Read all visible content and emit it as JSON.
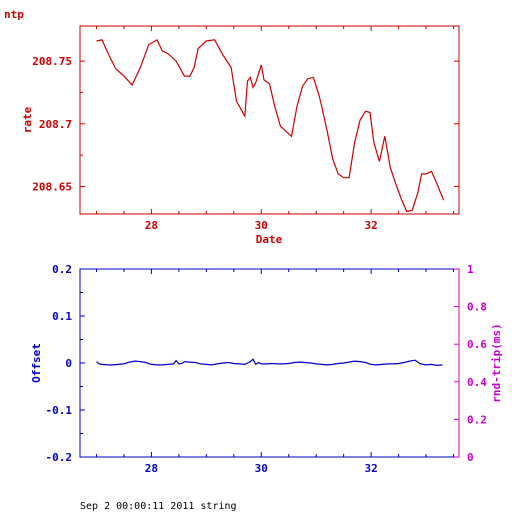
{
  "chart_data": [
    {
      "type": "line",
      "title": "ntp",
      "xlabel": "Date",
      "ylabel": "rate",
      "xlim": [
        26.7,
        33.6
      ],
      "ylim": [
        208.628,
        208.778
      ],
      "x_ticks": [
        28,
        30,
        32
      ],
      "y_ticks": [
        208.65,
        208.7,
        208.75
      ],
      "x_tick_labels": [
        "28",
        "30",
        "32"
      ],
      "y_tick_labels": [
        "208.65",
        "208.7",
        "208.75"
      ],
      "color": "#cc0000",
      "series": [
        {
          "x": [
            27.0,
            27.1,
            27.2,
            27.35,
            27.5,
            27.65,
            27.8,
            27.95,
            28.1,
            28.2,
            28.3,
            28.45,
            28.6,
            28.7,
            28.78,
            28.85,
            29.0,
            29.15,
            29.3,
            29.45,
            29.55,
            29.6,
            29.7,
            29.75,
            29.8,
            29.85,
            29.9,
            30.0,
            30.05,
            30.15,
            30.25,
            30.35,
            30.45,
            30.55,
            30.65,
            30.75,
            30.85,
            30.95,
            31.05,
            31.1,
            31.2,
            31.3,
            31.4,
            31.5,
            31.6,
            31.7,
            31.8,
            31.9,
            31.98,
            32.05,
            32.15,
            32.25,
            32.35,
            32.45,
            32.55,
            32.65,
            32.75,
            32.85,
            32.92,
            33.0,
            33.1,
            33.2,
            33.32
          ],
          "y": [
            208.766,
            208.767,
            208.757,
            208.744,
            208.738,
            208.731,
            208.745,
            208.763,
            208.767,
            208.758,
            208.756,
            208.75,
            208.738,
            208.738,
            208.745,
            208.76,
            208.766,
            208.767,
            208.755,
            208.745,
            208.718,
            208.714,
            208.706,
            208.734,
            208.737,
            208.729,
            208.733,
            208.747,
            208.735,
            208.732,
            208.713,
            208.698,
            208.694,
            208.69,
            208.714,
            208.73,
            208.736,
            208.737,
            208.723,
            208.714,
            208.694,
            208.672,
            208.66,
            208.657,
            208.657,
            208.685,
            208.703,
            208.71,
            208.709,
            208.685,
            208.67,
            208.69,
            208.665,
            208.652,
            208.64,
            208.63,
            208.631,
            208.645,
            208.66,
            208.66,
            208.662,
            208.652,
            208.639
          ]
        }
      ]
    },
    {
      "type": "line",
      "title": "",
      "xlabel": "",
      "ylabel": "Offset",
      "y2label": "rnd-trip(ms)",
      "xlim": [
        26.7,
        33.6
      ],
      "ylim": [
        -0.2,
        0.2
      ],
      "y2lim": [
        0,
        1
      ],
      "x_ticks": [
        28,
        30,
        32
      ],
      "y_ticks": [
        -0.2,
        -0.1,
        0,
        0.1,
        0.2
      ],
      "y2_ticks": [
        0,
        0.2,
        0.4,
        0.6,
        0.8,
        1
      ],
      "x_tick_labels": [
        "28",
        "30",
        "32"
      ],
      "y_tick_labels": [
        "-0.2",
        "-0.1",
        "0",
        "0.1",
        "0.2"
      ],
      "y2_tick_labels": [
        "0",
        "0.2",
        "0.4",
        "0.6",
        "0.8",
        "1"
      ],
      "color": "#0000cc",
      "color2": "#cc00cc",
      "series": [
        {
          "x": [
            27.0,
            27.05,
            27.1,
            27.2,
            27.3,
            27.4,
            27.5,
            27.6,
            27.7,
            27.8,
            27.9,
            28.0,
            28.1,
            28.2,
            28.3,
            28.4,
            28.45,
            28.5,
            28.55,
            28.6,
            28.7,
            28.8,
            28.9,
            29.0,
            29.1,
            29.2,
            29.3,
            29.4,
            29.5,
            29.6,
            29.7,
            29.8,
            29.85,
            29.9,
            29.95,
            30.0,
            30.1,
            30.2,
            30.3,
            30.4,
            30.5,
            30.6,
            30.7,
            30.8,
            30.9,
            31.0,
            31.1,
            31.2,
            31.3,
            31.4,
            31.5,
            31.6,
            31.7,
            31.8,
            31.9,
            32.0,
            32.1,
            32.2,
            32.3,
            32.4,
            32.5,
            32.6,
            32.7,
            32.8,
            32.85,
            32.9,
            33.0,
            33.1,
            33.2,
            33.3
          ],
          "y": [
            0.003,
            -0.002,
            -0.003,
            -0.004,
            -0.004,
            -0.003,
            -0.002,
            0.002,
            0.004,
            0.003,
            0.001,
            -0.003,
            -0.004,
            -0.004,
            -0.003,
            -0.002,
            0.005,
            -0.002,
            -0.001,
            0.003,
            0.002,
            0.001,
            -0.002,
            -0.003,
            -0.004,
            -0.002,
            0.0,
            0.001,
            -0.001,
            -0.002,
            -0.003,
            0.003,
            0.008,
            -0.003,
            0.001,
            -0.002,
            -0.002,
            -0.001,
            -0.002,
            -0.002,
            -0.001,
            0.001,
            0.002,
            0.001,
            0.0,
            -0.002,
            -0.003,
            -0.004,
            -0.003,
            -0.001,
            0.0,
            0.002,
            0.004,
            0.003,
            0.001,
            -0.003,
            -0.004,
            -0.003,
            -0.002,
            -0.002,
            -0.001,
            0.001,
            0.004,
            0.006,
            0.002,
            -0.002,
            -0.004,
            -0.003,
            -0.005,
            -0.004
          ]
        }
      ]
    }
  ],
  "footer": {
    "text": "Sep  2 00:00:11 2011 string"
  }
}
